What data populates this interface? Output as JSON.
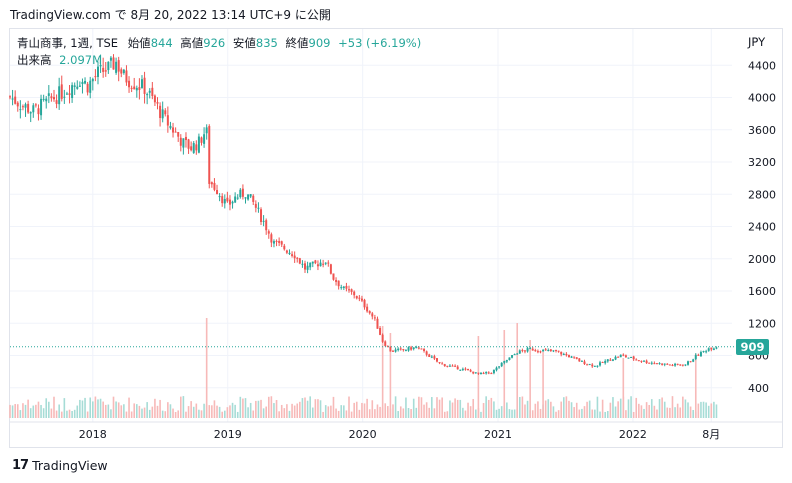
{
  "header": {
    "caption": "TradingView.com で 8月 20, 2022 13:14 UTC+9 に公開"
  },
  "legend": {
    "symbol": "青山商事, 1週, TSE",
    "open_label": "始値",
    "open": "844",
    "high_label": "高値",
    "high": "926",
    "low_label": "安値",
    "low": "835",
    "close_label": "終値",
    "close": "909",
    "change": "+53 (+6.19%)",
    "volume_label": "出来高",
    "volume": "2.097M"
  },
  "axis": {
    "currency": "JPY"
  },
  "price_tag": "909",
  "brand": {
    "name": "TradingView",
    "logo_text": "17"
  },
  "colors": {
    "up": "#26a69a",
    "down": "#ef5350",
    "up_volume": "#a6dcd6",
    "down_volume": "#f7b9b8",
    "grid": "#f0f3fa",
    "text": "#131722"
  },
  "chart_data": {
    "type": "candlestick",
    "interval": "1 week",
    "y_ticks": [
      400,
      800,
      1200,
      1600,
      2000,
      2400,
      2800,
      3200,
      3600,
      4000,
      4400
    ],
    "x_ticks": [
      {
        "label": "2018",
        "date": "2018-01-01"
      },
      {
        "label": "2019",
        "date": "2019-01-01"
      },
      {
        "label": "2020",
        "date": "2020-01-01"
      },
      {
        "label": "2021",
        "date": "2021-01-01"
      },
      {
        "label": "2022",
        "date": "2022-01-01"
      },
      {
        "label": "8月",
        "date": "2022-08-01"
      }
    ],
    "x_range": [
      "2017-05-22",
      "2022-09-26"
    ],
    "y_range": [
      0,
      4850
    ],
    "last_price": 909,
    "close_path": [
      [
        "2017-05-22",
        4010
      ],
      [
        "2017-06-19",
        3920
      ],
      [
        "2017-07-24",
        3830
      ],
      [
        "2017-09-04",
        3960
      ],
      [
        "2017-10-16",
        4080
      ],
      [
        "2017-11-27",
        4230
      ],
      [
        "2017-12-18",
        4150
      ],
      [
        "2018-01-15",
        4300
      ],
      [
        "2018-02-12",
        4360
      ],
      [
        "2018-03-05",
        4440
      ],
      [
        "2018-03-26",
        4260
      ],
      [
        "2018-04-23",
        4180
      ],
      [
        "2018-05-21",
        4120
      ],
      [
        "2018-06-18",
        3930
      ],
      [
        "2018-07-16",
        3720
      ],
      [
        "2018-08-13",
        3560
      ],
      [
        "2018-09-03",
        3430
      ],
      [
        "2018-09-24",
        3380
      ],
      [
        "2018-10-15",
        3440
      ],
      [
        "2018-10-29",
        3560
      ],
      [
        "2018-11-05",
        3000
      ],
      [
        "2018-12-03",
        2860
      ],
      [
        "2018-12-31",
        2650
      ],
      [
        "2019-01-21",
        2760
      ],
      [
        "2019-02-18",
        2820
      ],
      [
        "2019-03-11",
        2690
      ],
      [
        "2019-04-08",
        2460
      ],
      [
        "2019-05-06",
        2190
      ],
      [
        "2019-06-03",
        2130
      ],
      [
        "2019-07-01",
        2050
      ],
      [
        "2019-07-29",
        1880
      ],
      [
        "2019-08-26",
        1930
      ],
      [
        "2019-09-23",
        1980
      ],
      [
        "2019-10-14",
        1760
      ],
      [
        "2019-11-11",
        1620
      ],
      [
        "2019-12-09",
        1560
      ],
      [
        "2020-01-06",
        1420
      ],
      [
        "2020-02-03",
        1240
      ],
      [
        "2020-02-24",
        980
      ],
      [
        "2020-03-16",
        860
      ],
      [
        "2020-04-20",
        870
      ],
      [
        "2020-05-25",
        900
      ],
      [
        "2020-06-22",
        820
      ],
      [
        "2020-07-27",
        700
      ],
      [
        "2020-08-31",
        660
      ],
      [
        "2020-10-05",
        620
      ],
      [
        "2020-11-09",
        570
      ],
      [
        "2020-12-14",
        590
      ],
      [
        "2021-01-18",
        720
      ],
      [
        "2021-02-22",
        840
      ],
      [
        "2021-03-29",
        880
      ],
      [
        "2021-05-03",
        860
      ],
      [
        "2021-06-07",
        850
      ],
      [
        "2021-07-12",
        790
      ],
      [
        "2021-08-16",
        720
      ],
      [
        "2021-09-20",
        670
      ],
      [
        "2021-10-25",
        740
      ],
      [
        "2021-11-29",
        800
      ],
      [
        "2022-01-03",
        760
      ],
      [
        "2022-02-07",
        720
      ],
      [
        "2022-03-14",
        700
      ],
      [
        "2022-04-18",
        680
      ],
      [
        "2022-05-23",
        690
      ],
      [
        "2022-06-20",
        790
      ],
      [
        "2022-07-25",
        890
      ],
      [
        "2022-08-15",
        909
      ]
    ],
    "volume_spikes": [
      {
        "date": "2018-11-05",
        "value": 1.0
      },
      {
        "date": "2020-02-24",
        "value": 0.92
      },
      {
        "date": "2020-03-16",
        "value": 0.85
      },
      {
        "date": "2020-11-09",
        "value": 0.82
      },
      {
        "date": "2021-01-18",
        "value": 0.88
      },
      {
        "date": "2021-02-22",
        "value": 0.95
      },
      {
        "date": "2021-03-29",
        "value": 0.78
      },
      {
        "date": "2021-05-03",
        "value": 0.66
      },
      {
        "date": "2021-12-06",
        "value": 0.6
      },
      {
        "date": "2022-06-20",
        "value": 0.64
      }
    ]
  }
}
